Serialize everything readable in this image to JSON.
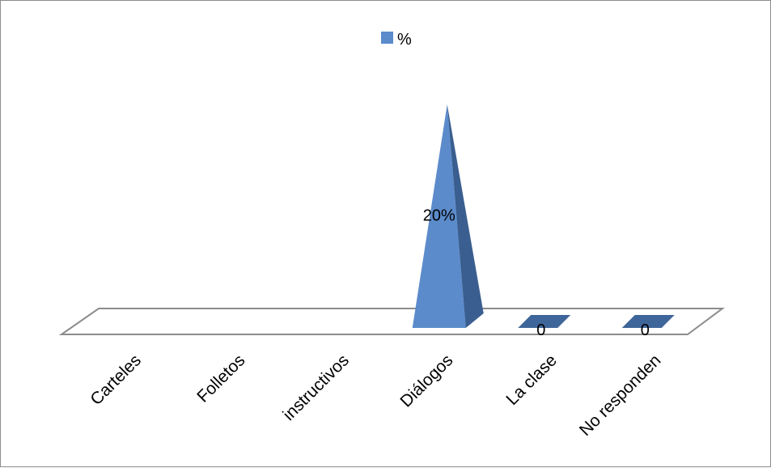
{
  "chart_data": {
    "type": "bar",
    "style": "3d-pyramid",
    "categories": [
      "Carteles",
      "Folletos",
      "instructivos",
      "Diálogos",
      "La clase",
      "No responden"
    ],
    "series": [
      {
        "name": "%",
        "values": [
          0,
          0,
          0,
          20,
          0,
          0
        ],
        "data_labels": [
          "",
          "",
          "",
          "20%",
          "0",
          "0"
        ]
      }
    ],
    "ylim": [
      0,
      20
    ],
    "grid": false,
    "legend_position": "top",
    "colors": {
      "bar_front": "#5B8BCB",
      "bar_side": "#3A5E8F",
      "flat_marker": "#3F669A",
      "floor_stroke": "#8C8C8C"
    }
  }
}
